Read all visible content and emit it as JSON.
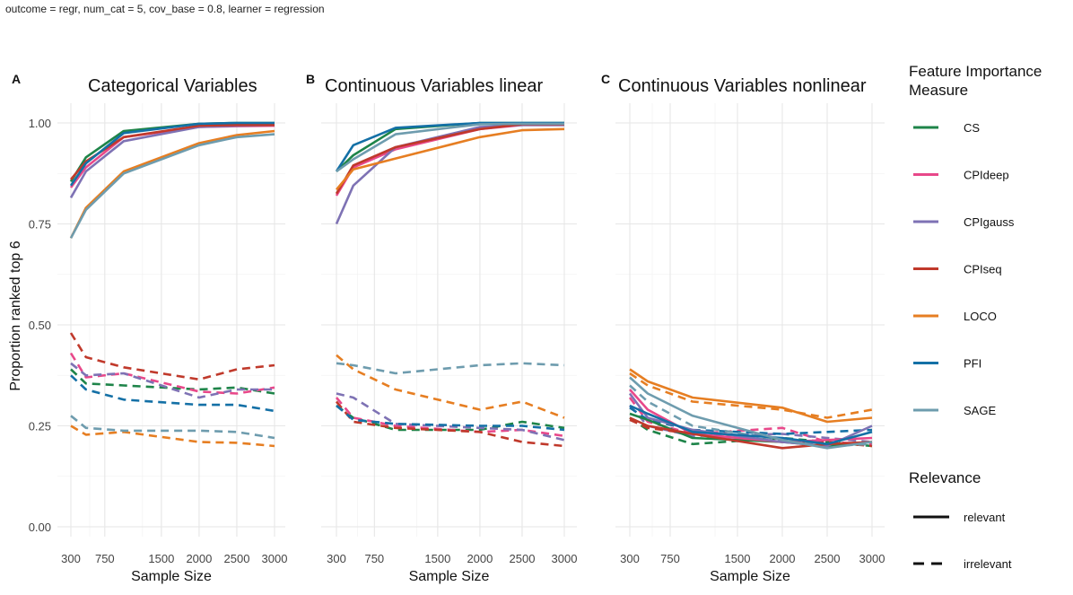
{
  "subtitle": "outcome = regr, num_cat = 5, cov_base = 0.8, learner = regression",
  "legend": {
    "measure_title_line1": "Feature Importance",
    "measure_title_line2": "Measure",
    "relevance_title": "Relevance",
    "relevance_items": [
      {
        "label": "relevant",
        "dash": "solid"
      },
      {
        "label": "irrelevant",
        "dash": "dashed"
      }
    ]
  },
  "chart_data": {
    "type": "line",
    "xlabel": "Sample Size",
    "ylabel": "Proportion ranked top 6",
    "x": [
      300,
      500,
      1000,
      2000,
      2500,
      3000
    ],
    "xticks": [
      300,
      750,
      1500,
      2000,
      2500,
      3000
    ],
    "xlim": [
      300,
      3000
    ],
    "yticks": [
      0.0,
      0.25,
      0.5,
      0.75,
      1.0
    ],
    "ytick_labels": [
      "0.00",
      "0.25",
      "0.50",
      "0.75",
      "1.00"
    ],
    "ylim": [
      0,
      1
    ],
    "grid": true,
    "measures": [
      {
        "name": "CS",
        "color": "#1e8449"
      },
      {
        "name": "CPIdeep",
        "color": "#e8488a"
      },
      {
        "name": "CPIgauss",
        "color": "#7e72b4"
      },
      {
        "name": "CPIseq",
        "color": "#c0392b"
      },
      {
        "name": "LOCO",
        "color": "#e67e22"
      },
      {
        "name": "PFI",
        "color": "#1470a6"
      },
      {
        "name": "SAGE",
        "color": "#6e9cae"
      }
    ],
    "panels": [
      {
        "tag": "A",
        "title": "Categorical Variables",
        "series": [
          {
            "name": "CS",
            "relevance": "relevant",
            "values": [
              0.855,
              0.915,
              0.98,
              0.998,
              1.0,
              1.0
            ]
          },
          {
            "name": "CPIdeep",
            "relevance": "relevant",
            "values": [
              0.84,
              0.89,
              0.965,
              0.99,
              0.992,
              0.993
            ]
          },
          {
            "name": "CPIgauss",
            "relevance": "relevant",
            "values": [
              0.815,
              0.88,
              0.955,
              0.99,
              0.993,
              0.995
            ]
          },
          {
            "name": "CPIseq",
            "relevance": "relevant",
            "values": [
              0.86,
              0.905,
              0.965,
              0.993,
              0.995,
              0.995
            ]
          },
          {
            "name": "LOCO",
            "relevance": "relevant",
            "values": [
              0.715,
              0.79,
              0.88,
              0.95,
              0.97,
              0.98
            ]
          },
          {
            "name": "PFI",
            "relevance": "relevant",
            "values": [
              0.845,
              0.9,
              0.975,
              0.998,
              1.0,
              1.0
            ]
          },
          {
            "name": "SAGE",
            "relevance": "relevant",
            "values": [
              0.715,
              0.785,
              0.875,
              0.945,
              0.965,
              0.972
            ]
          },
          {
            "name": "CS",
            "relevance": "irrelevant",
            "values": [
              0.39,
              0.355,
              0.35,
              0.34,
              0.345,
              0.33
            ]
          },
          {
            "name": "CPIdeep",
            "relevance": "irrelevant",
            "values": [
              0.43,
              0.37,
              0.38,
              0.335,
              0.33,
              0.345
            ]
          },
          {
            "name": "CPIgauss",
            "relevance": "irrelevant",
            "values": [
              0.405,
              0.375,
              0.38,
              0.32,
              0.34,
              0.34
            ]
          },
          {
            "name": "CPIseq",
            "relevance": "irrelevant",
            "values": [
              0.48,
              0.42,
              0.395,
              0.365,
              0.39,
              0.4
            ]
          },
          {
            "name": "LOCO",
            "relevance": "irrelevant",
            "values": [
              0.25,
              0.228,
              0.235,
              0.21,
              0.208,
              0.2
            ]
          },
          {
            "name": "PFI",
            "relevance": "irrelevant",
            "values": [
              0.375,
              0.34,
              0.315,
              0.302,
              0.302,
              0.287
            ]
          },
          {
            "name": "SAGE",
            "relevance": "irrelevant",
            "values": [
              0.275,
              0.245,
              0.238,
              0.238,
              0.235,
              0.22
            ]
          }
        ]
      },
      {
        "tag": "B",
        "title": "Continuous Variables linear",
        "series": [
          {
            "name": "CS",
            "relevance": "relevant",
            "values": [
              0.88,
              0.92,
              0.985,
              1.0,
              1.0,
              1.0
            ]
          },
          {
            "name": "CPIdeep",
            "relevance": "relevant",
            "values": [
              0.82,
              0.89,
              0.935,
              0.985,
              0.995,
              0.995
            ]
          },
          {
            "name": "CPIgauss",
            "relevance": "relevant",
            "values": [
              0.75,
              0.845,
              0.94,
              0.99,
              0.995,
              0.995
            ]
          },
          {
            "name": "CPIseq",
            "relevance": "relevant",
            "values": [
              0.825,
              0.895,
              0.94,
              0.985,
              0.997,
              0.997
            ]
          },
          {
            "name": "LOCO",
            "relevance": "relevant",
            "values": [
              0.835,
              0.885,
              0.912,
              0.965,
              0.982,
              0.985
            ]
          },
          {
            "name": "PFI",
            "relevance": "relevant",
            "values": [
              0.88,
              0.945,
              0.988,
              1.0,
              1.0,
              1.0
            ]
          },
          {
            "name": "SAGE",
            "relevance": "relevant",
            "values": [
              0.88,
              0.91,
              0.972,
              0.997,
              0.998,
              0.998
            ]
          },
          {
            "name": "CS",
            "relevance": "irrelevant",
            "values": [
              0.3,
              0.27,
              0.24,
              0.24,
              0.26,
              0.245
            ]
          },
          {
            "name": "CPIdeep",
            "relevance": "irrelevant",
            "values": [
              0.32,
              0.27,
              0.25,
              0.235,
              0.24,
              0.225
            ]
          },
          {
            "name": "CPIgauss",
            "relevance": "irrelevant",
            "values": [
              0.33,
              0.32,
              0.255,
              0.245,
              0.24,
              0.215
            ]
          },
          {
            "name": "CPIseq",
            "relevance": "irrelevant",
            "values": [
              0.31,
              0.26,
              0.245,
              0.235,
              0.21,
              0.2
            ]
          },
          {
            "name": "LOCO",
            "relevance": "irrelevant",
            "values": [
              0.425,
              0.39,
              0.34,
              0.29,
              0.31,
              0.27
            ]
          },
          {
            "name": "PFI",
            "relevance": "irrelevant",
            "values": [
              0.3,
              0.265,
              0.255,
              0.25,
              0.25,
              0.24
            ]
          },
          {
            "name": "SAGE",
            "relevance": "irrelevant",
            "values": [
              0.405,
              0.4,
              0.38,
              0.4,
              0.405,
              0.4
            ]
          }
        ]
      },
      {
        "tag": "C",
        "title": "Continuous Variables nonlinear",
        "series": [
          {
            "name": "CS",
            "relevance": "relevant",
            "values": [
              0.28,
              0.265,
              0.22,
              0.21,
              0.2,
              0.21
            ]
          },
          {
            "name": "CPIdeep",
            "relevance": "relevant",
            "values": [
              0.34,
              0.29,
              0.23,
              0.21,
              0.215,
              0.22
            ]
          },
          {
            "name": "CPIgauss",
            "relevance": "relevant",
            "values": [
              0.33,
              0.27,
              0.24,
              0.21,
              0.2,
              0.25
            ]
          },
          {
            "name": "CPIseq",
            "relevance": "relevant",
            "values": [
              0.27,
              0.25,
              0.23,
              0.195,
              0.205,
              0.21
            ]
          },
          {
            "name": "LOCO",
            "relevance": "relevant",
            "values": [
              0.39,
              0.36,
              0.32,
              0.295,
              0.26,
              0.27
            ]
          },
          {
            "name": "PFI",
            "relevance": "relevant",
            "values": [
              0.3,
              0.28,
              0.235,
              0.22,
              0.205,
              0.235
            ]
          },
          {
            "name": "SAGE",
            "relevance": "relevant",
            "values": [
              0.37,
              0.33,
              0.275,
              0.215,
              0.195,
              0.21
            ]
          },
          {
            "name": "CS",
            "relevance": "irrelevant",
            "values": [
              0.27,
              0.24,
              0.205,
              0.22,
              0.21,
              0.2
            ]
          },
          {
            "name": "CPIdeep",
            "relevance": "irrelevant",
            "values": [
              0.32,
              0.26,
              0.23,
              0.245,
              0.21,
              0.205
            ]
          },
          {
            "name": "CPIgauss",
            "relevance": "irrelevant",
            "values": [
              0.3,
              0.25,
              0.225,
              0.23,
              0.22,
              0.21
            ]
          },
          {
            "name": "CPIseq",
            "relevance": "irrelevant",
            "values": [
              0.265,
              0.245,
              0.23,
              0.21,
              0.21,
              0.2
            ]
          },
          {
            "name": "LOCO",
            "relevance": "irrelevant",
            "values": [
              0.38,
              0.35,
              0.31,
              0.29,
              0.27,
              0.29
            ]
          },
          {
            "name": "PFI",
            "relevance": "irrelevant",
            "values": [
              0.295,
              0.265,
              0.24,
              0.23,
              0.235,
              0.24
            ]
          },
          {
            "name": "SAGE",
            "relevance": "irrelevant",
            "values": [
              0.35,
              0.31,
              0.25,
              0.215,
              0.2,
              0.205
            ]
          }
        ]
      }
    ]
  }
}
